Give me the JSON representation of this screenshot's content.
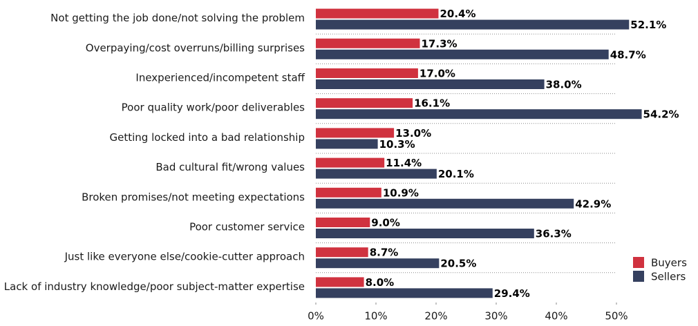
{
  "chart_data": {
    "type": "bar",
    "orientation": "horizontal",
    "categories": [
      "Not getting the job done/not solving the problem",
      "Overpaying/cost overruns/billing surprises",
      "Inexperienced/incompetent staff",
      "Poor quality work/poor deliverables",
      "Getting locked into a bad relationship",
      "Bad cultural fit/wrong values",
      "Broken promises/not meeting expectations",
      "Poor customer service",
      "Just like everyone else/cookie-cutter approach",
      "Lack of industry knowledge/poor subject-matter expertise"
    ],
    "series": [
      {
        "name": "Buyers",
        "color": "#d0323f",
        "values": [
          20.4,
          17.3,
          17.0,
          16.1,
          13.0,
          11.4,
          10.9,
          9.0,
          8.7,
          8.0
        ],
        "value_labels": [
          "20.4%",
          "17.3%",
          "17.0%",
          "16.1%",
          "13.0%",
          "11.4%",
          "10.9%",
          "9.0%",
          "8.7%",
          "8.0%"
        ]
      },
      {
        "name": "Sellers",
        "color": "#35405f",
        "values": [
          52.1,
          48.7,
          38.0,
          54.2,
          10.3,
          20.1,
          42.9,
          36.3,
          20.5,
          29.4
        ],
        "value_labels": [
          "52.1%",
          "48.7%",
          "38.0%",
          "54.2%",
          "10.3%",
          "20.1%",
          "42.9%",
          "36.3%",
          "20.5%",
          "29.4%"
        ]
      }
    ],
    "xlim": [
      0,
      50
    ],
    "xticks": [
      {
        "value": 0,
        "label": "0%"
      },
      {
        "value": 10,
        "label": "10%"
      },
      {
        "value": 20,
        "label": "20%"
      },
      {
        "value": 30,
        "label": "30%"
      },
      {
        "value": 40,
        "label": "40%"
      },
      {
        "value": 50,
        "label": "50%"
      }
    ],
    "legend": "lower right"
  }
}
